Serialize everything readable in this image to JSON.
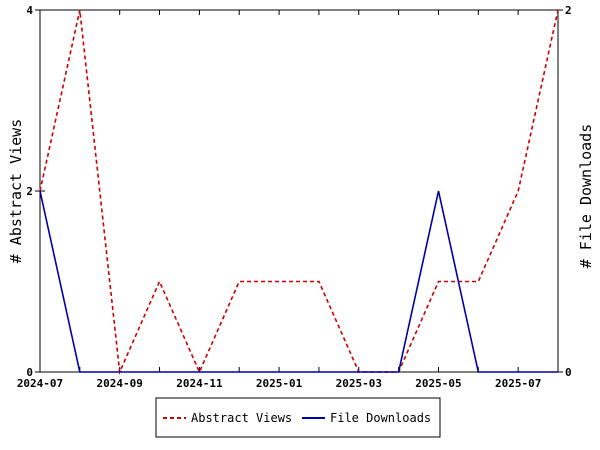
{
  "chart_data": {
    "type": "line",
    "x": [
      "2024-07",
      "2024-08",
      "2024-09",
      "2024-10",
      "2024-11",
      "2024-12",
      "2025-01",
      "2025-02",
      "2025-03",
      "2025-04",
      "2025-05",
      "2025-06",
      "2025-07",
      "2025-08"
    ],
    "xticks": [
      "2024-07",
      "2024-09",
      "2024-11",
      "2025-01",
      "2025-03",
      "2025-05",
      "2025-07"
    ],
    "series": [
      {
        "name": "Abstract Views",
        "axis": "left",
        "color": "#cc0000",
        "dash": "dashed",
        "values": [
          2,
          4,
          0,
          1,
          0,
          1,
          1,
          1,
          0,
          0,
          1,
          1,
          2,
          4
        ]
      },
      {
        "name": "File Downloads",
        "axis": "right",
        "color": "#0000aa",
        "dash": "solid",
        "values": [
          1,
          0,
          0,
          0,
          0,
          0,
          0,
          0,
          0,
          0,
          1,
          0,
          0,
          0
        ]
      }
    ],
    "ylabel_left": "# Abstract Views",
    "ylabel_right": "# File Downloads",
    "ylim_left": [
      0,
      4
    ],
    "ylim_right": [
      0,
      2
    ],
    "yticks_left": [
      "0",
      "2",
      "4"
    ],
    "yticks_right": [
      "0",
      "2"
    ],
    "grid": false,
    "legend_position": "bottom-center"
  }
}
